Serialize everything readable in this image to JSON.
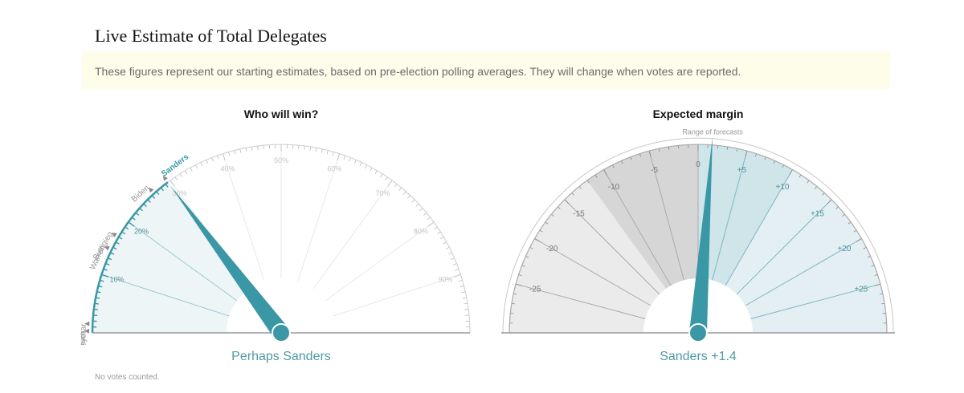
{
  "title": "Live Estimate of Total Delegates",
  "notice": "These figures represent our starting estimates, based on pre-election polling averages. They will change when votes are reported.",
  "footnote": "No votes counted.",
  "colors": {
    "accent": "#3a97a5",
    "accent_fill": "#eef5f7",
    "grey_band_dark": "#d6d6d6",
    "grey_band_light": "#ebebeb",
    "teal_band_dark": "#cfe5ea",
    "teal_band_light": "#e3eff2"
  },
  "chart_data": [
    {
      "type": "gauge",
      "title": "Who will win?",
      "result_label": "Perhaps Sanders",
      "scale": [
        0,
        100
      ],
      "unit": "%",
      "ticks": [
        "10%",
        "20%",
        "30%",
        "40%",
        "50%",
        "60%",
        "70%",
        "80%",
        "90%"
      ],
      "tick_values": [
        10,
        20,
        30,
        40,
        50,
        60,
        70,
        80,
        90
      ],
      "needle_value": 29.5,
      "candidates": [
        {
          "name": "Steyer",
          "value": 0.3,
          "highlight": false
        },
        {
          "name": "Klobuchar",
          "value": 1.5,
          "highlight": false
        },
        {
          "name": "Warren",
          "value": 14.5,
          "highlight": false
        },
        {
          "name": "Buttigieg",
          "value": 17,
          "highlight": false
        },
        {
          "name": "Biden",
          "value": 26.5,
          "highlight": false
        },
        {
          "name": "Sanders",
          "value": 29.5,
          "highlight": true
        }
      ]
    },
    {
      "type": "gauge",
      "title": "Expected margin",
      "result_label": "Sanders +1.4",
      "annotation": "Range of forecasts",
      "scale": [
        -30,
        30
      ],
      "ticks": [
        "-25",
        "-20",
        "-15",
        "-10",
        "-5",
        "0",
        "+5",
        "+10",
        "+15",
        "+20",
        "+25"
      ],
      "tick_values": [
        -25,
        -20,
        -15,
        -10,
        -5,
        0,
        5,
        10,
        15,
        20,
        25
      ],
      "needle_value": 1.4,
      "band_inner": [
        -12,
        10
      ],
      "band_outer": [
        -30,
        30
      ]
    }
  ]
}
